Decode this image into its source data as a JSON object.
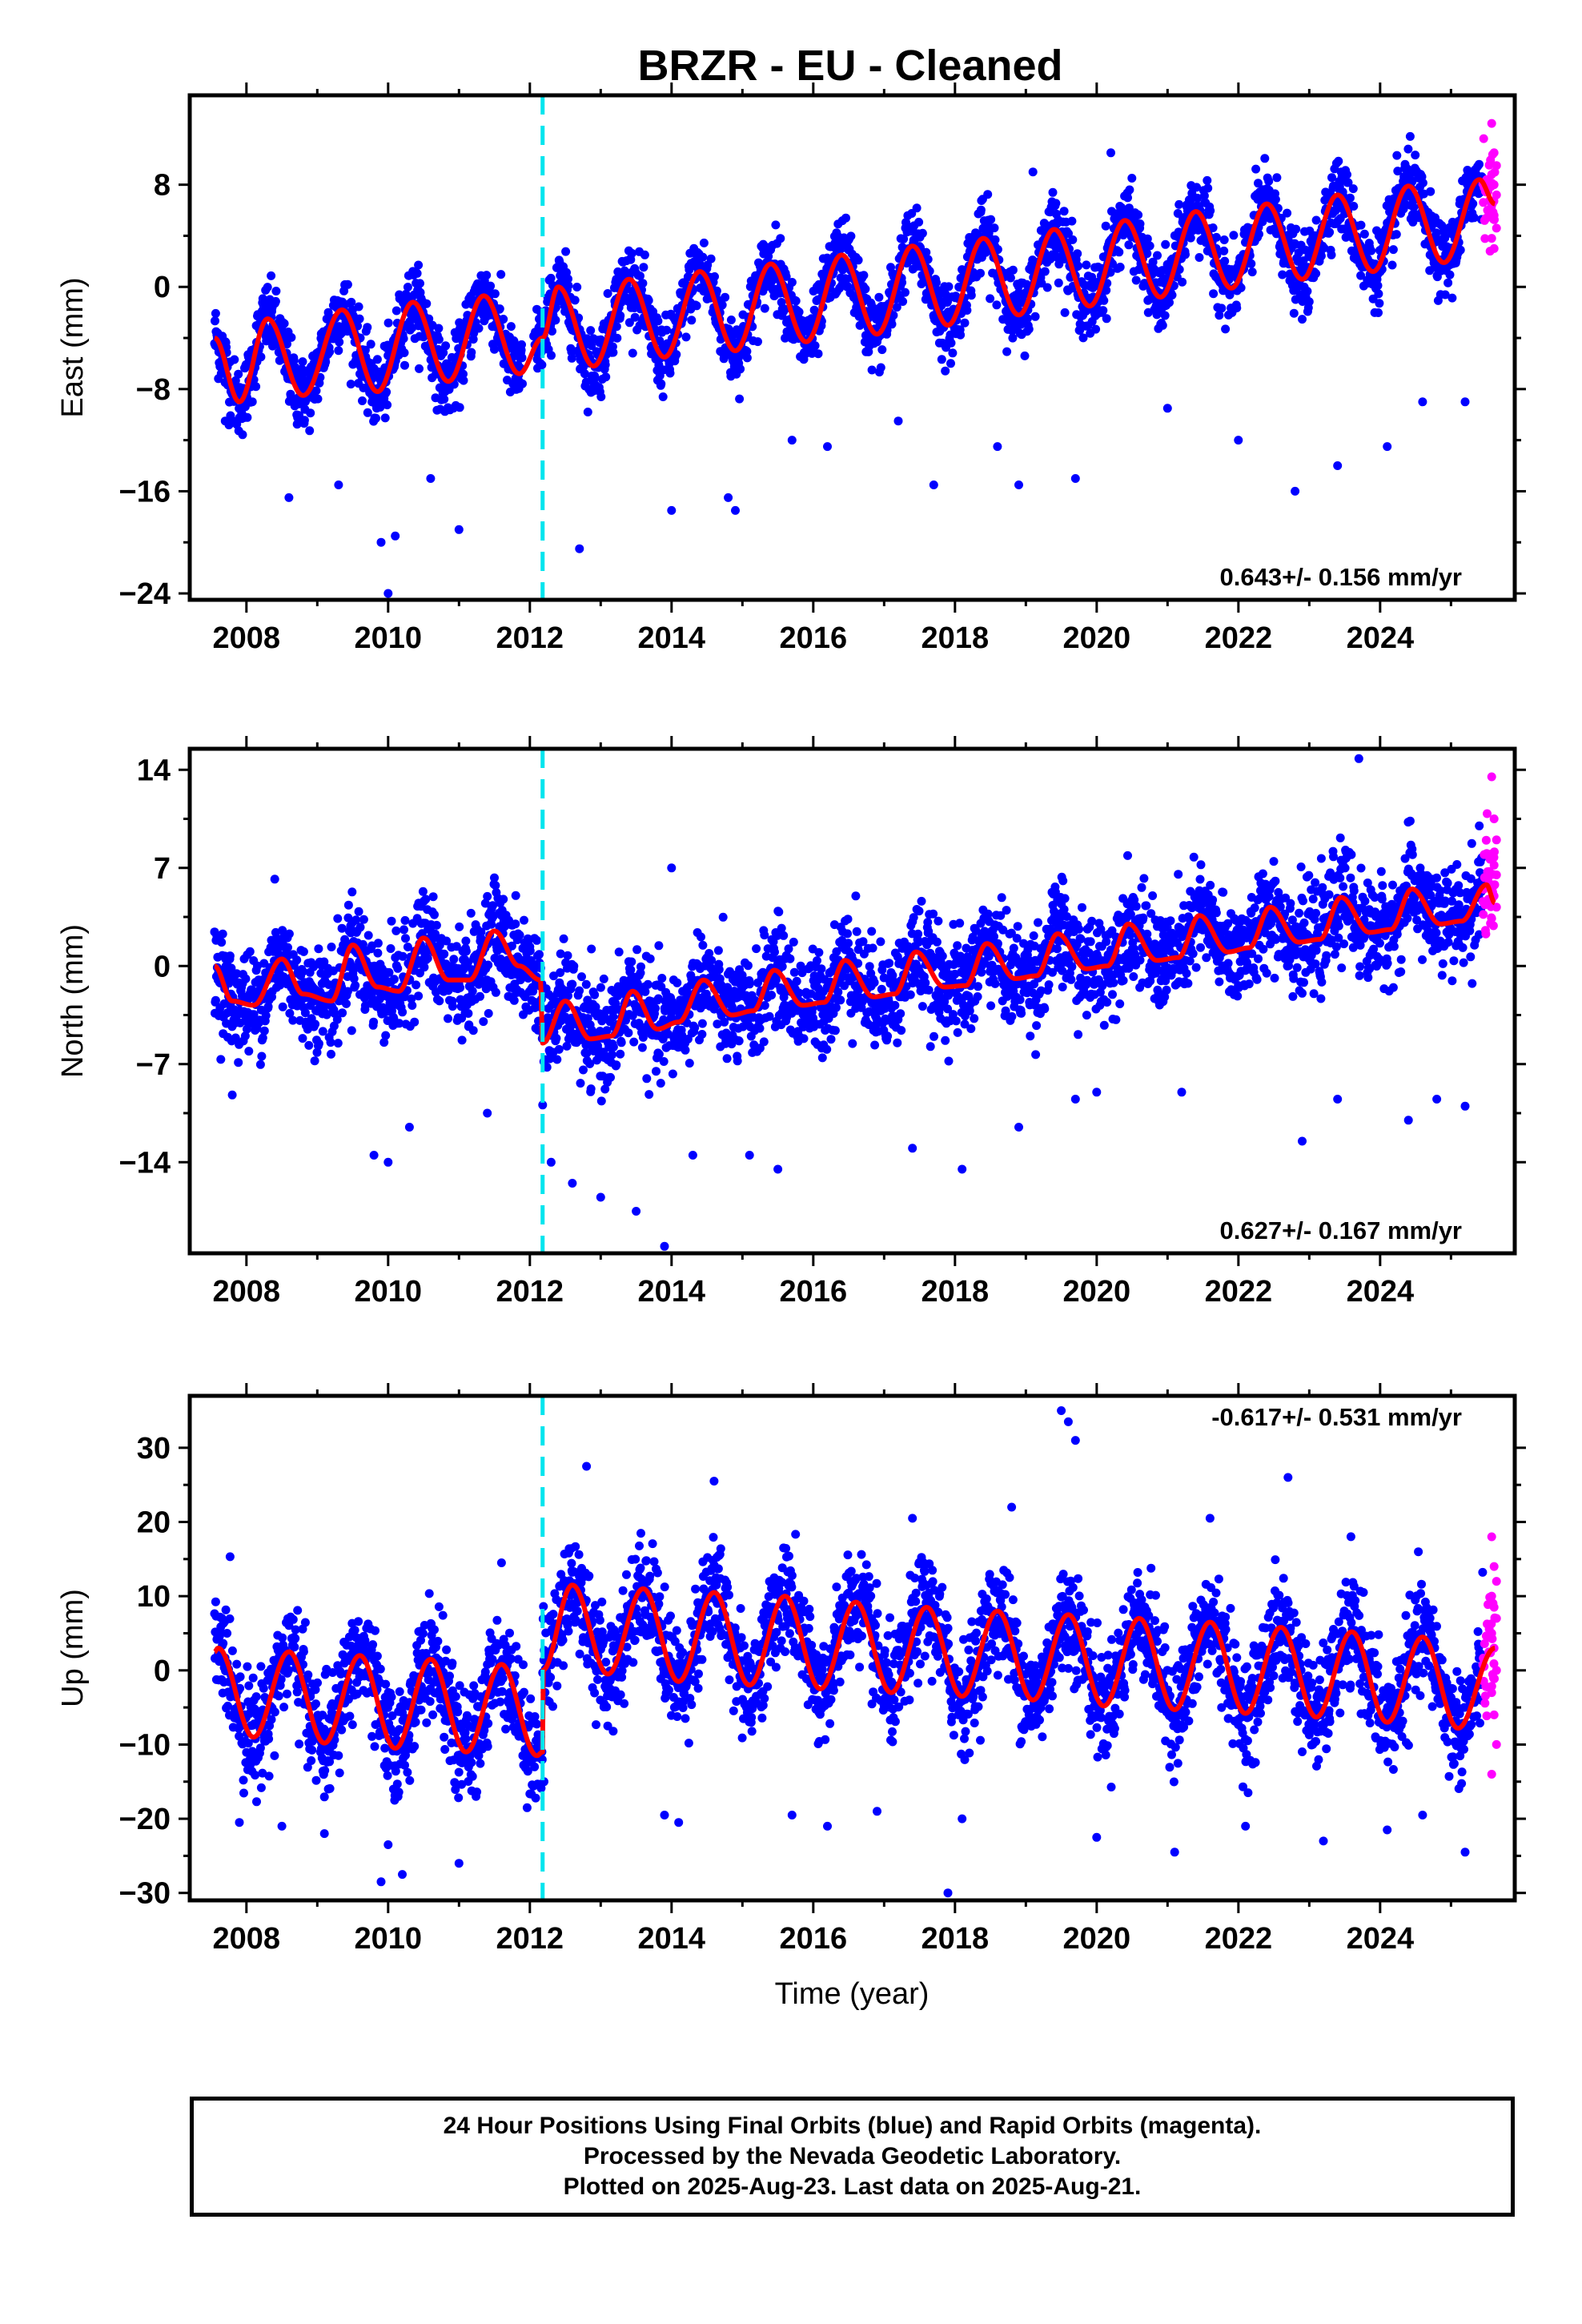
{
  "title": "BRZR  - EU - Cleaned",
  "footer": {
    "line1": "24 Hour Positions Using Final Orbits (blue) and Rapid Orbits (magenta).",
    "line2": "Processed by the Nevada Geodetic Laboratory.",
    "line3": "Plotted on 2025-Aug-23. Last data on 2025-Aug-21."
  },
  "colors": {
    "final_points": "#0000ff",
    "rapid_points": "#ff00ff",
    "model_line": "#ff0000",
    "break_line": "#00e5ee"
  },
  "chart_data": [
    {
      "type": "scatter",
      "panel": "east",
      "ylabel": "East (mm)",
      "xlabel": "",
      "xlim": [
        2007.2,
        2025.9
      ],
      "ylim": [
        -24.5,
        15
      ],
      "yticks": [
        8,
        0,
        -8,
        -16,
        -24
      ],
      "ytick_labels": [
        "8",
        "0",
        "−8",
        "−16",
        "−24"
      ],
      "xticks": [
        2008,
        2010,
        2012,
        2014,
        2016,
        2018,
        2020,
        2022,
        2024
      ],
      "xtick_labels": [
        "2008",
        "2010",
        "2012",
        "2014",
        "2016",
        "2018",
        "2020",
        "2022",
        "2024"
      ],
      "rate_label": "0.643+/- 0.156 mm/yr",
      "rate_position": "bottom-right",
      "break_epoch": 2012.18,
      "data_start": 2007.55,
      "data_end": 2025.62,
      "rapid_start": 2025.45,
      "model_points": [
        [
          2007.55,
          -4.0
        ],
        [
          2007.9,
          -9.0
        ],
        [
          2008.3,
          -2.5
        ],
        [
          2008.8,
          -8.5
        ],
        [
          2009.35,
          -1.8
        ],
        [
          2009.85,
          -8.2
        ],
        [
          2010.35,
          -1.2
        ],
        [
          2010.85,
          -7.4
        ],
        [
          2011.35,
          -0.7
        ],
        [
          2011.85,
          -6.8
        ],
        [
          2012.18,
          -4.0
        ],
        [
          2012.4,
          0.0
        ],
        [
          2012.9,
          -6.2
        ],
        [
          2013.4,
          0.6
        ],
        [
          2013.9,
          -5.5
        ],
        [
          2014.4,
          1.2
        ],
        [
          2014.9,
          -5.0
        ],
        [
          2015.4,
          1.8
        ],
        [
          2015.9,
          -4.3
        ],
        [
          2016.4,
          2.5
        ],
        [
          2016.9,
          -3.7
        ],
        [
          2017.4,
          3.2
        ],
        [
          2017.9,
          -3.0
        ],
        [
          2018.4,
          3.8
        ],
        [
          2018.9,
          -2.2
        ],
        [
          2019.4,
          4.5
        ],
        [
          2019.9,
          -1.5
        ],
        [
          2020.4,
          5.2
        ],
        [
          2020.9,
          -0.8
        ],
        [
          2021.4,
          5.9
        ],
        [
          2021.9,
          -0.1
        ],
        [
          2022.4,
          6.5
        ],
        [
          2022.9,
          0.6
        ],
        [
          2023.4,
          7.2
        ],
        [
          2023.9,
          1.2
        ],
        [
          2024.4,
          7.9
        ],
        [
          2024.9,
          1.9
        ],
        [
          2025.4,
          8.4
        ],
        [
          2025.62,
          6.5
        ]
      ],
      "outliers": [
        [
          2007.7,
          -10.5
        ],
        [
          2008.6,
          -16.5
        ],
        [
          2009.3,
          -15.5
        ],
        [
          2009.9,
          -20
        ],
        [
          2010.0,
          -24
        ],
        [
          2010.1,
          -19.5
        ],
        [
          2010.6,
          -15
        ],
        [
          2011.0,
          -19
        ],
        [
          2012.7,
          -20.5
        ],
        [
          2014.0,
          -17.5
        ],
        [
          2014.8,
          -16.5
        ],
        [
          2014.9,
          -17.5
        ],
        [
          2015.7,
          -12
        ],
        [
          2016.2,
          -12.5
        ],
        [
          2017.2,
          -10.5
        ],
        [
          2017.7,
          -15.5
        ],
        [
          2018.6,
          -12.5
        ],
        [
          2018.9,
          -15.5
        ],
        [
          2019.7,
          -15
        ],
        [
          2021.0,
          -9.5
        ],
        [
          2022.0,
          -12
        ],
        [
          2022.8,
          -16
        ],
        [
          2023.4,
          -14
        ],
        [
          2024.1,
          -12.5
        ],
        [
          2024.6,
          -9
        ],
        [
          2025.2,
          -9
        ],
        [
          2020.2,
          10.5
        ],
        [
          2019.1,
          9
        ]
      ],
      "rapid_samples": [
        12.8,
        10.5,
        9.5,
        8.8,
        8.0,
        7.2,
        6.5,
        5.6,
        4.6,
        3.8,
        3.0
      ]
    },
    {
      "type": "scatter",
      "panel": "north",
      "ylabel": "North (mm)",
      "xlabel": "",
      "xlim": [
        2007.2,
        2025.9
      ],
      "ylim": [
        -20.5,
        15.5
      ],
      "yticks": [
        14,
        7,
        0,
        -7,
        -14
      ],
      "ytick_labels": [
        "14",
        "7",
        "0",
        "−7",
        "−14"
      ],
      "xticks": [
        2008,
        2010,
        2012,
        2014,
        2016,
        2018,
        2020,
        2022,
        2024
      ],
      "xtick_labels": [
        "2008",
        "2010",
        "2012",
        "2014",
        "2016",
        "2018",
        "2020",
        "2022",
        "2024"
      ],
      "rate_label": "0.627+/- 0.167 mm/yr",
      "rate_position": "bottom-right",
      "break_epoch": 2012.18,
      "data_start": 2007.55,
      "data_end": 2025.62,
      "rapid_start": 2025.45,
      "model_points": [
        [
          2007.55,
          0.0
        ],
        [
          2007.8,
          -2.5
        ],
        [
          2008.1,
          -2.8
        ],
        [
          2008.5,
          0.5
        ],
        [
          2008.8,
          -2.0
        ],
        [
          2009.2,
          -2.5
        ],
        [
          2009.5,
          1.5
        ],
        [
          2009.85,
          -1.5
        ],
        [
          2010.15,
          -1.8
        ],
        [
          2010.5,
          2.0
        ],
        [
          2010.85,
          -1.0
        ],
        [
          2011.15,
          -1.0
        ],
        [
          2011.5,
          2.5
        ],
        [
          2011.85,
          0.0
        ],
        [
          2012.15,
          -1.0
        ],
        [
          2012.18,
          -5.5
        ],
        [
          2012.5,
          -2.5
        ],
        [
          2012.85,
          -5.2
        ],
        [
          2013.15,
          -5.0
        ],
        [
          2013.45,
          -1.8
        ],
        [
          2013.8,
          -4.5
        ],
        [
          2014.1,
          -4.0
        ],
        [
          2014.45,
          -1.0
        ],
        [
          2014.85,
          -3.5
        ],
        [
          2015.15,
          -3.2
        ],
        [
          2015.45,
          -0.3
        ],
        [
          2015.85,
          -2.8
        ],
        [
          2016.15,
          -2.6
        ],
        [
          2016.45,
          0.4
        ],
        [
          2016.85,
          -2.2
        ],
        [
          2017.15,
          -2.0
        ],
        [
          2017.45,
          1.0
        ],
        [
          2017.85,
          -1.5
        ],
        [
          2018.15,
          -1.4
        ],
        [
          2018.45,
          1.6
        ],
        [
          2018.85,
          -0.9
        ],
        [
          2019.15,
          -0.7
        ],
        [
          2019.45,
          2.3
        ],
        [
          2019.85,
          -0.2
        ],
        [
          2020.15,
          0.0
        ],
        [
          2020.45,
          3.0
        ],
        [
          2020.85,
          0.4
        ],
        [
          2021.15,
          0.6
        ],
        [
          2021.45,
          3.6
        ],
        [
          2021.85,
          1.0
        ],
        [
          2022.15,
          1.3
        ],
        [
          2022.45,
          4.2
        ],
        [
          2022.85,
          1.7
        ],
        [
          2023.15,
          1.9
        ],
        [
          2023.45,
          4.9
        ],
        [
          2023.85,
          2.4
        ],
        [
          2024.15,
          2.6
        ],
        [
          2024.45,
          5.5
        ],
        [
          2024.85,
          3.0
        ],
        [
          2025.15,
          3.2
        ],
        [
          2025.5,
          5.8
        ],
        [
          2025.62,
          4.5
        ]
      ],
      "outliers": [
        [
          2007.8,
          -9.2
        ],
        [
          2008.4,
          6.2
        ],
        [
          2009.8,
          -13.5
        ],
        [
          2010.0,
          -14
        ],
        [
          2010.3,
          -11.5
        ],
        [
          2011.4,
          -10.5
        ],
        [
          2012.3,
          -14
        ],
        [
          2012.6,
          -15.5
        ],
        [
          2013.0,
          -16.5
        ],
        [
          2013.5,
          -17.5
        ],
        [
          2013.9,
          -20
        ],
        [
          2014.3,
          -13.5
        ],
        [
          2014.0,
          7
        ],
        [
          2015.1,
          -13.5
        ],
        [
          2015.5,
          -14.5
        ],
        [
          2016.6,
          5
        ],
        [
          2017.4,
          -13
        ],
        [
          2018.1,
          -14.5
        ],
        [
          2018.9,
          -11.5
        ],
        [
          2019.7,
          -9.5
        ],
        [
          2020.0,
          -9
        ],
        [
          2021.2,
          -9
        ],
        [
          2022.9,
          -12.5
        ],
        [
          2023.4,
          -9.5
        ],
        [
          2024.4,
          -11
        ],
        [
          2024.8,
          -9.5
        ],
        [
          2025.2,
          -10
        ],
        [
          2023.7,
          14.8
        ],
        [
          2025.4,
          10
        ]
      ],
      "rapid_samples": [
        13.5,
        10.5,
        9.0,
        8.0,
        7.2,
        6.5,
        5.8,
        5.0,
        4.2,
        3.4
      ]
    },
    {
      "type": "scatter",
      "panel": "up",
      "ylabel": "Up (mm)",
      "xlabel": "Time (year)",
      "xlim": [
        2007.2,
        2025.9
      ],
      "ylim": [
        -31,
        37
      ],
      "yticks": [
        30,
        20,
        10,
        0,
        -10,
        -20,
        -30
      ],
      "ytick_labels": [
        "30",
        "20",
        "10",
        "0",
        "−10",
        "−20",
        "−30"
      ],
      "xticks": [
        2008,
        2010,
        2012,
        2014,
        2016,
        2018,
        2020,
        2022,
        2024
      ],
      "xtick_labels": [
        "2008",
        "2010",
        "2012",
        "2014",
        "2016",
        "2018",
        "2020",
        "2022",
        "2024"
      ],
      "rate_label": "-0.617+/- 0.531 mm/yr",
      "rate_position": "top-right",
      "break_epoch": 2012.18,
      "data_start": 2007.55,
      "data_end": 2025.62,
      "rapid_start": 2025.45,
      "model_points": [
        [
          2007.55,
          2.5
        ],
        [
          2007.6,
          3.0
        ],
        [
          2008.1,
          -9.0
        ],
        [
          2008.6,
          2.5
        ],
        [
          2009.1,
          -9.8
        ],
        [
          2009.6,
          2.0
        ],
        [
          2010.1,
          -10.5
        ],
        [
          2010.6,
          1.5
        ],
        [
          2011.1,
          -11.0
        ],
        [
          2011.6,
          0.8
        ],
        [
          2012.1,
          -11.5
        ],
        [
          2012.18,
          -11.0
        ],
        [
          2012.18,
          0.0
        ],
        [
          2012.6,
          11.5
        ],
        [
          2013.1,
          -0.5
        ],
        [
          2013.6,
          11.0
        ],
        [
          2014.1,
          -1.5
        ],
        [
          2014.6,
          10.5
        ],
        [
          2015.1,
          -2.0
        ],
        [
          2015.6,
          10.0
        ],
        [
          2016.1,
          -2.5
        ],
        [
          2016.6,
          9.2
        ],
        [
          2017.1,
          -3.0
        ],
        [
          2017.6,
          8.5
        ],
        [
          2018.1,
          -3.5
        ],
        [
          2018.6,
          8.0
        ],
        [
          2019.1,
          -4.0
        ],
        [
          2019.6,
          7.5
        ],
        [
          2020.1,
          -4.8
        ],
        [
          2020.6,
          7.0
        ],
        [
          2021.1,
          -5.3
        ],
        [
          2021.6,
          6.5
        ],
        [
          2022.1,
          -5.8
        ],
        [
          2022.6,
          5.8
        ],
        [
          2023.1,
          -6.3
        ],
        [
          2023.6,
          5.2
        ],
        [
          2024.1,
          -7.0
        ],
        [
          2024.6,
          4.5
        ],
        [
          2025.1,
          -7.8
        ],
        [
          2025.62,
          3.0
        ]
      ],
      "outliers": [
        [
          2007.9,
          -20.5
        ],
        [
          2008.5,
          -21
        ],
        [
          2009.1,
          -22
        ],
        [
          2009.9,
          -28.5
        ],
        [
          2010.2,
          -27.5
        ],
        [
          2010.0,
          -23.5
        ],
        [
          2011.0,
          -26
        ],
        [
          2011.6,
          14.5
        ],
        [
          2012.2,
          -15
        ],
        [
          2012.8,
          27.5
        ],
        [
          2013.9,
          -19.5
        ],
        [
          2014.1,
          -20.5
        ],
        [
          2014.6,
          25.5
        ],
        [
          2015.7,
          -19.5
        ],
        [
          2016.2,
          -21
        ],
        [
          2016.9,
          -19
        ],
        [
          2017.4,
          20.5
        ],
        [
          2017.9,
          -30
        ],
        [
          2018.1,
          -20
        ],
        [
          2018.8,
          22
        ],
        [
          2019.5,
          35
        ],
        [
          2019.6,
          33.5
        ],
        [
          2019.7,
          31
        ],
        [
          2020.0,
          -22.5
        ],
        [
          2021.1,
          -24.5
        ],
        [
          2021.6,
          20.5
        ],
        [
          2022.1,
          -21
        ],
        [
          2022.7,
          26
        ],
        [
          2023.2,
          -23
        ],
        [
          2024.1,
          -21.5
        ],
        [
          2024.6,
          -19.5
        ],
        [
          2025.2,
          -24.5
        ]
      ],
      "rapid_samples": [
        18,
        14,
        12,
        10,
        8.5,
        7,
        5,
        3,
        0,
        -3,
        -6,
        -10,
        -14
      ]
    }
  ]
}
